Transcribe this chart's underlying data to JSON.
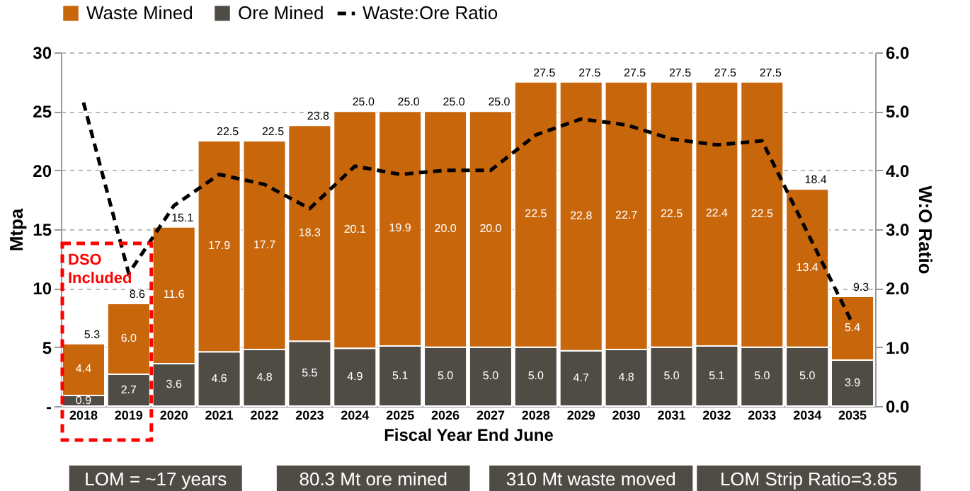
{
  "chart_data": {
    "type": "bar",
    "stacked": true,
    "xlabel": "Fiscal Year End June",
    "ylabel": "Mtpa",
    "y2label": "W:O Ratio",
    "categories": [
      "2018",
      "2019",
      "2020",
      "2021",
      "2022",
      "2023",
      "2024",
      "2025",
      "2026",
      "2027",
      "2028",
      "2029",
      "2030",
      "2031",
      "2032",
      "2033",
      "2034",
      "2035"
    ],
    "series": [
      {
        "name": "Ore Mined",
        "color": "#4f4b45",
        "values": [
          0.9,
          2.7,
          3.6,
          4.6,
          4.8,
          5.5,
          4.9,
          5.1,
          5.0,
          5.0,
          5.0,
          4.7,
          4.8,
          5.0,
          5.1,
          5.0,
          5.0,
          3.9
        ],
        "value_labels": [
          "0.9",
          "2.7",
          "3.6",
          "4.6",
          "4.8",
          "5.5",
          "4.9",
          "5.1",
          "5.0",
          "5.0",
          "5.0",
          "4.7",
          "4.8",
          "5.0",
          "5.1",
          "5.0",
          "5.0",
          "3.9"
        ]
      },
      {
        "name": "Waste Mined",
        "color": "#c8660c",
        "values": [
          4.4,
          6.0,
          11.6,
          17.9,
          17.7,
          18.3,
          20.1,
          19.9,
          20.0,
          20.0,
          22.5,
          22.8,
          22.7,
          22.5,
          22.4,
          22.5,
          13.4,
          5.4
        ],
        "value_labels": [
          "4.4",
          "6.0",
          "11.6",
          "17.9",
          "17.7",
          "18.3",
          "20.1",
          "19.9",
          "20.0",
          "20.0",
          "22.5",
          "22.8",
          "22.7",
          "22.5",
          "22.4",
          "22.5",
          "13.4",
          "5.4"
        ]
      },
      {
        "name": "Waste:Ore Ratio",
        "type": "line",
        "axis": "y2",
        "color": "#000000",
        "line_style": "dashed",
        "values": [
          5.15,
          2.25,
          3.4,
          3.93,
          3.76,
          3.35,
          4.07,
          3.93,
          4.0,
          4.0,
          4.6,
          4.87,
          4.77,
          4.53,
          4.43,
          4.5,
          2.95,
          1.4
        ]
      }
    ],
    "totals": [
      "5.3",
      "8.6",
      "15.1",
      "22.5",
      "22.5",
      "23.8",
      "25.0",
      "25.0",
      "25.0",
      "25.0",
      "27.5",
      "27.5",
      "27.5",
      "27.5",
      "27.5",
      "27.5",
      "18.4",
      "9.3"
    ],
    "ylim": [
      0,
      30
    ],
    "yticks": [
      {
        "value": 0,
        "label": "-"
      },
      5,
      10,
      15,
      20,
      25,
      30
    ],
    "y2lim": [
      0,
      6
    ],
    "y2ticks": [
      {
        "value": 0,
        "label": "0.0"
      },
      {
        "value": 1,
        "label": "1.0"
      },
      {
        "value": 2,
        "label": "2.0"
      },
      {
        "value": 3,
        "label": "3.0"
      },
      {
        "value": 4,
        "label": "4.0"
      },
      {
        "value": 5,
        "label": "5.0"
      },
      {
        "value": 6,
        "label": "6.0"
      }
    ],
    "grid": "y",
    "legend": "top",
    "annotations": [
      "DSO Included",
      "LOM = ~17 years",
      "80.3 Mt ore mined",
      "310 Mt waste moved",
      "LOM Strip Ratio=3.85"
    ]
  }
}
